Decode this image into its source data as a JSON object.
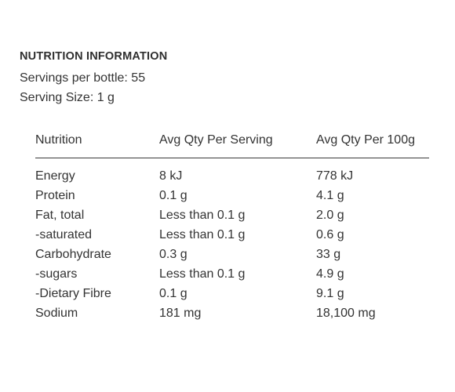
{
  "title": "NUTRITION INFORMATION",
  "servings_per_bottle": "Servings per bottle: 55",
  "serving_size": "Serving Size: 1 g",
  "table": {
    "headers": [
      "Nutrition",
      "Avg Qty Per Serving",
      "Avg Qty Per 100g"
    ],
    "rows": [
      [
        "Energy",
        "8 kJ",
        "778 kJ"
      ],
      [
        "Protein",
        "0.1 g",
        "4.1 g"
      ],
      [
        "Fat, total",
        "Less than 0.1 g",
        "2.0 g"
      ],
      [
        "-saturated",
        "Less than 0.1 g",
        "0.6 g"
      ],
      [
        "Carbohydrate",
        "0.3 g",
        "33 g"
      ],
      [
        "-sugars",
        "Less than 0.1 g",
        "4.9 g"
      ],
      [
        "-Dietary Fibre",
        "0.1 g",
        "9.1 g"
      ],
      [
        "Sodium",
        "181 mg",
        "18,100 mg"
      ]
    ]
  }
}
